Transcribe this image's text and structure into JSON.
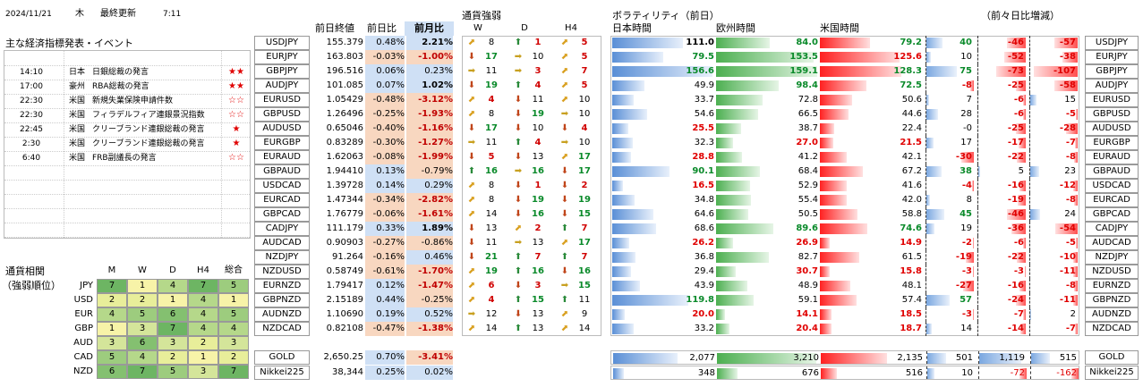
{
  "header": {
    "date": "2024/11/21",
    "weekday": "木",
    "updated_label": "最終更新",
    "time": "7:11"
  },
  "events": {
    "title": "主な経済指標発表・イベント",
    "rows": [
      {
        "time": "14:10",
        "country": "日本",
        "name": "日銀総裁の発言",
        "stars": "★★"
      },
      {
        "time": "17:00",
        "country": "豪州",
        "name": "RBA総裁の発言",
        "stars": "★★"
      },
      {
        "time": "22:30",
        "country": "米国",
        "name": "新規失業保険申請件数",
        "stars": "☆☆"
      },
      {
        "time": "22:30",
        "country": "米国",
        "name": "フィラデルフィア連銀景況指数",
        "stars": "☆☆"
      },
      {
        "time": "22:45",
        "country": "米国",
        "name": "クリーブランド連銀総裁の発言",
        "stars": "★"
      },
      {
        "time": "2:30",
        "country": "米国",
        "name": "クリーブランド連銀総裁の発言",
        "stars": "★"
      },
      {
        "time": "6:40",
        "country": "米国",
        "name": "FRB副議長の発言",
        "stars": "☆☆"
      }
    ]
  },
  "correlation": {
    "title1": "通貨相関",
    "title2": "（強弱順位）",
    "headers": [
      "M",
      "W",
      "D",
      "H4",
      "総合"
    ],
    "rows": [
      {
        "ccy": "JPY",
        "vals": [
          7,
          1,
          4,
          7,
          5
        ]
      },
      {
        "ccy": "USD",
        "vals": [
          2,
          2,
          1,
          4,
          1
        ]
      },
      {
        "ccy": "EUR",
        "vals": [
          4,
          5,
          6,
          4,
          5
        ]
      },
      {
        "ccy": "GBP",
        "vals": [
          1,
          3,
          7,
          4,
          4
        ]
      },
      {
        "ccy": "AUD",
        "vals": [
          3,
          6,
          3,
          2,
          3
        ]
      },
      {
        "ccy": "CAD",
        "vals": [
          5,
          4,
          2,
          1,
          2
        ]
      },
      {
        "ccy": "NZD",
        "vals": [
          6,
          7,
          5,
          3,
          7
        ]
      }
    ]
  },
  "rates": {
    "headers": {
      "close": "前日終値",
      "daily": "前日比",
      "monthly": "前月比"
    },
    "rows": [
      {
        "pair": "USDJPY",
        "close": "155.379",
        "daily": "0.48%",
        "monthly": "2.21%"
      },
      {
        "pair": "EURJPY",
        "close": "163.803",
        "daily": "-0.03%",
        "monthly": "-1.00%"
      },
      {
        "pair": "GBPJPY",
        "close": "196.516",
        "daily": "0.06%",
        "monthly": "0.23%"
      },
      {
        "pair": "AUDJPY",
        "close": "101.085",
        "daily": "0.07%",
        "monthly": "1.02%"
      },
      {
        "pair": "EURUSD",
        "close": "1.05429",
        "daily": "-0.48%",
        "monthly": "-3.12%"
      },
      {
        "pair": "GBPUSD",
        "close": "1.26496",
        "daily": "-0.25%",
        "monthly": "-1.93%"
      },
      {
        "pair": "AUDUSD",
        "close": "0.65046",
        "daily": "-0.40%",
        "monthly": "-1.16%"
      },
      {
        "pair": "EURGBP",
        "close": "0.83289",
        "daily": "-0.30%",
        "monthly": "-1.27%"
      },
      {
        "pair": "EURAUD",
        "close": "1.62063",
        "daily": "-0.08%",
        "monthly": "-1.99%"
      },
      {
        "pair": "GBPAUD",
        "close": "1.94410",
        "daily": "0.13%",
        "monthly": "-0.79%"
      },
      {
        "pair": "USDCAD",
        "close": "1.39728",
        "daily": "0.14%",
        "monthly": "0.29%"
      },
      {
        "pair": "EURCAD",
        "close": "1.47344",
        "daily": "-0.34%",
        "monthly": "-2.82%"
      },
      {
        "pair": "GBPCAD",
        "close": "1.76779",
        "daily": "-0.06%",
        "monthly": "-1.61%"
      },
      {
        "pair": "CADJPY",
        "close": "111.179",
        "daily": "0.33%",
        "monthly": "1.89%"
      },
      {
        "pair": "AUDCAD",
        "close": "0.90903",
        "daily": "-0.27%",
        "monthly": "-0.86%"
      },
      {
        "pair": "NZDJPY",
        "close": "91.264",
        "daily": "-0.16%",
        "monthly": "0.46%"
      },
      {
        "pair": "NZDUSD",
        "close": "0.58749",
        "daily": "-0.61%",
        "monthly": "-1.70%"
      },
      {
        "pair": "EURNZD",
        "close": "1.79417",
        "daily": "0.12%",
        "monthly": "-1.47%"
      },
      {
        "pair": "GBPNZD",
        "close": "2.15189",
        "daily": "0.44%",
        "monthly": "-0.25%"
      },
      {
        "pair": "AUDNZD",
        "close": "1.10690",
        "daily": "0.19%",
        "monthly": "0.52%"
      },
      {
        "pair": "NZDCAD",
        "close": "0.82108",
        "daily": "-0.47%",
        "monthly": "-1.38%"
      }
    ],
    "extra": [
      {
        "pair": "GOLD",
        "close": "2,650.25",
        "daily": "0.70%",
        "monthly": "-3.41%"
      },
      {
        "pair": "Nikkei225",
        "close": "38,344",
        "daily": "0.25%",
        "monthly": "0.02%"
      }
    ]
  },
  "strength": {
    "title": "通貨強弱",
    "headers": [
      "W",
      "D",
      "H4"
    ],
    "rows": [
      [
        "ur",
        "8",
        "up",
        "1",
        "ur",
        "5"
      ],
      [
        "dn",
        "17",
        "rt",
        "10",
        "ur",
        "5"
      ],
      [
        "rt",
        "11",
        "rt",
        "3",
        "ur",
        "7"
      ],
      [
        "dn",
        "19",
        "up",
        "4",
        "ur",
        "5"
      ],
      [
        "ur",
        "4",
        "dn",
        "11",
        "ur",
        "10"
      ],
      [
        "ur",
        "8",
        "dn",
        "19",
        "rt",
        "10"
      ],
      [
        "dn",
        "17",
        "dn",
        "10",
        "dn",
        "4"
      ],
      [
        "rt",
        "11",
        "up",
        "4",
        "rt",
        "10"
      ],
      [
        "dn",
        "5",
        "dn",
        "13",
        "ur",
        "17"
      ],
      [
        "up",
        "16",
        "rt",
        "16",
        "dn",
        "17"
      ],
      [
        "ur",
        "8",
        "dn",
        "1",
        "dn",
        "2"
      ],
      [
        "ur",
        "8",
        "dn",
        "19",
        "dn",
        "19"
      ],
      [
        "ur",
        "14",
        "dn",
        "16",
        "dn",
        "15"
      ],
      [
        "dn",
        "13",
        "ur",
        "2",
        "up",
        "7"
      ],
      [
        "dn",
        "11",
        "rt",
        "13",
        "ur",
        "17"
      ],
      [
        "dn",
        "21",
        "up",
        "7",
        "up",
        "7"
      ],
      [
        "ur",
        "19",
        "up",
        "16",
        "dn",
        "16"
      ],
      [
        "ur",
        "6",
        "dn",
        "3",
        "rt",
        "15"
      ],
      [
        "ur",
        "4",
        "up",
        "15",
        "up",
        "11"
      ],
      [
        "rt",
        "12",
        "dn",
        "13",
        "ur",
        "9"
      ],
      [
        "ur",
        "14",
        "up",
        "13",
        "ur",
        "14"
      ]
    ]
  },
  "volatility": {
    "title": "ボラティリティ（前日）",
    "compare_title": "（前々日比増減）",
    "headers": [
      "日本時間",
      "欧州時間",
      "米国時間"
    ],
    "rows": [
      {
        "jp": "111.0",
        "eu": "84.0",
        "us": "79.2",
        "d1": "40",
        "d2": "-46",
        "d3": "-57",
        "jpc": "blue",
        "euc": "green",
        "usc": "green"
      },
      {
        "jp": "79.5",
        "eu": "153.5",
        "us": "125.6",
        "d1": "10",
        "d2": "-52",
        "d3": "-38",
        "jpc": "green",
        "euc": "green",
        "usc": "red"
      },
      {
        "jp": "156.6",
        "eu": "159.1",
        "us": "128.3",
        "d1": "75",
        "d2": "-73",
        "d3": "-107",
        "jpc": "green",
        "euc": "green",
        "usc": "green"
      },
      {
        "jp": "49.9",
        "eu": "98.4",
        "us": "72.5",
        "d1": "-8",
        "d2": "-25",
        "d3": "-58",
        "jpc": "black",
        "euc": "green",
        "usc": "green"
      },
      {
        "jp": "33.7",
        "eu": "72.8",
        "us": "50.6",
        "d1": "7",
        "d2": "-6",
        "d3": "15",
        "jpc": "black",
        "euc": "black",
        "usc": "black"
      },
      {
        "jp": "54.6",
        "eu": "66.5",
        "us": "44.6",
        "d1": "28",
        "d2": "-6",
        "d3": "-5",
        "jpc": "black",
        "euc": "black",
        "usc": "black"
      },
      {
        "jp": "25.5",
        "eu": "38.7",
        "us": "22.4",
        "d1": "-0",
        "d2": "-25",
        "d3": "-28",
        "jpc": "red",
        "euc": "black",
        "usc": "black"
      },
      {
        "jp": "32.3",
        "eu": "27.0",
        "us": "21.5",
        "d1": "17",
        "d2": "-17",
        "d3": "-7",
        "jpc": "black",
        "euc": "red",
        "usc": "red"
      },
      {
        "jp": "28.8",
        "eu": "41.2",
        "us": "42.1",
        "d1": "-30",
        "d2": "-22",
        "d3": "-8",
        "jpc": "red",
        "euc": "black",
        "usc": "black"
      },
      {
        "jp": "90.1",
        "eu": "68.4",
        "us": "67.2",
        "d1": "38",
        "d2": "5",
        "d3": "23",
        "jpc": "green",
        "euc": "black",
        "usc": "black"
      },
      {
        "jp": "16.5",
        "eu": "52.9",
        "us": "41.6",
        "d1": "-4",
        "d2": "-16",
        "d3": "-12",
        "jpc": "red",
        "euc": "black",
        "usc": "black"
      },
      {
        "jp": "34.8",
        "eu": "55.4",
        "us": "42.0",
        "d1": "8",
        "d2": "-19",
        "d3": "-8",
        "jpc": "black",
        "euc": "black",
        "usc": "black"
      },
      {
        "jp": "64.6",
        "eu": "50.5",
        "us": "58.8",
        "d1": "45",
        "d2": "-46",
        "d3": "24",
        "jpc": "black",
        "euc": "black",
        "usc": "black"
      },
      {
        "jp": "68.6",
        "eu": "89.6",
        "us": "74.6",
        "d1": "19",
        "d2": "-36",
        "d3": "-54",
        "jpc": "black",
        "euc": "green",
        "usc": "green"
      },
      {
        "jp": "26.2",
        "eu": "26.9",
        "us": "14.9",
        "d1": "-2",
        "d2": "-6",
        "d3": "-5",
        "jpc": "red",
        "euc": "red",
        "usc": "red"
      },
      {
        "jp": "36.8",
        "eu": "82.7",
        "us": "61.5",
        "d1": "-19",
        "d2": "-22",
        "d3": "-10",
        "jpc": "black",
        "euc": "black",
        "usc": "black"
      },
      {
        "jp": "29.4",
        "eu": "30.7",
        "us": "15.8",
        "d1": "-3",
        "d2": "-3",
        "d3": "-11",
        "jpc": "black",
        "euc": "red",
        "usc": "red"
      },
      {
        "jp": "43.9",
        "eu": "48.9",
        "us": "48.1",
        "d1": "-27",
        "d2": "-16",
        "d3": "-8",
        "jpc": "black",
        "euc": "black",
        "usc": "black"
      },
      {
        "jp": "119.8",
        "eu": "59.1",
        "us": "57.4",
        "d1": "57",
        "d2": "-24",
        "d3": "-11",
        "jpc": "green",
        "euc": "black",
        "usc": "black"
      },
      {
        "jp": "20.0",
        "eu": "14.1",
        "us": "18.5",
        "d1": "-3",
        "d2": "-7",
        "d3": "2",
        "jpc": "red",
        "euc": "red",
        "usc": "red"
      },
      {
        "jp": "33.2",
        "eu": "20.4",
        "us": "18.7",
        "d1": "14",
        "d2": "-14",
        "d3": "-7",
        "jpc": "black",
        "euc": "red",
        "usc": "red"
      }
    ],
    "extra": [
      {
        "jp": "2,077",
        "eu": "3,210",
        "us": "2,135",
        "d1": "501",
        "d2": "1,119",
        "d3": "515"
      },
      {
        "jp": "348",
        "eu": "676",
        "us": "516",
        "d1": "10",
        "d2": "-72",
        "d3": "-162"
      }
    ]
  }
}
